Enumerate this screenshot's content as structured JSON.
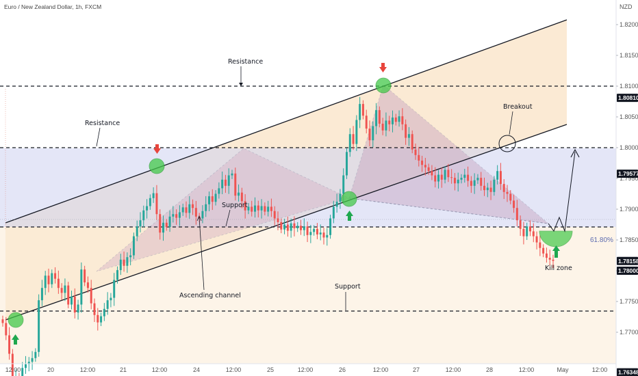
{
  "header": {
    "title": "Euro / New Zealand Dollar, 1h, FXCM",
    "currency": "NZD"
  },
  "colors": {
    "up": "#26a69a",
    "down": "#ef5350",
    "upGreen": "#1fa84f",
    "channelFill": "#f8e2c4",
    "zoneFill": "#c9cdf0",
    "marker": "#3ec44a",
    "dashed": "#131722",
    "priceTag": "#131722"
  },
  "chart_data": {
    "type": "candlestick",
    "title": "Euro / New Zealand Dollar, 1h, FXCM",
    "ylabel": "NZD",
    "ylim": [
      1.7515,
      1.8255
    ],
    "grid": false,
    "x_ticks": [
      "12:00",
      "20",
      "12:00",
      "21",
      "12:00",
      "24",
      "12:00",
      "25",
      "12:00",
      "26",
      "12:00",
      "27",
      "12:00",
      "28",
      "12:00",
      "May",
      "12:00"
    ],
    "y_ticks": [
      "1.82000",
      "1.81500",
      "1.81000",
      "1.80500",
      "1.80000",
      "1.79500",
      "1.79000",
      "1.78500",
      "1.78000",
      "1.77500",
      "1.77000",
      "1.76500",
      "1.76000",
      "1.75500"
    ],
    "price_tags": [
      {
        "label": "1.80810",
        "value": 1.8081
      },
      {
        "label": "1.79577",
        "value": 1.79577
      },
      {
        "label": "1.78158",
        "value": 1.78158
      },
      {
        "label": "1.78000",
        "value": 1.78
      },
      {
        "label": "1.76348",
        "value": 1.76348
      }
    ],
    "horizontal_levels": [
      1.8081,
      1.79577,
      1.78,
      1.76348
    ],
    "candles_close": [
      1.7715,
      1.7695,
      1.7665,
      1.7612,
      1.7628,
      1.7618,
      1.7642,
      1.7648,
      1.7652,
      1.7658,
      1.7668,
      1.7752,
      1.7772,
      1.7792,
      1.7778,
      1.7796,
      1.7787,
      1.7772,
      1.7764,
      1.7776,
      1.7745,
      1.7758,
      1.7732,
      1.7745,
      1.7802,
      1.7781,
      1.7772,
      1.7747,
      1.7728,
      1.7716,
      1.7726,
      1.7738,
      1.7752,
      1.7756,
      1.7785,
      1.7801,
      1.7818,
      1.7808,
      1.7822,
      1.7825,
      1.7856,
      1.7872,
      1.7882,
      1.7898,
      1.7905,
      1.7918,
      1.7926,
      1.7892,
      1.7862,
      1.7878,
      1.7871,
      1.7888,
      1.7892,
      1.7886,
      1.7895,
      1.7903,
      1.7894,
      1.7908,
      1.7902,
      1.7888,
      1.7885,
      1.7897,
      1.7908,
      1.7921,
      1.7912,
      1.7925,
      1.7934,
      1.7948,
      1.7938,
      1.7955,
      1.7958,
      1.7922,
      1.7927,
      1.7913,
      1.7898,
      1.7904,
      1.7896,
      1.7906,
      1.7898,
      1.7905,
      1.7896,
      1.7904,
      1.7897,
      1.7885,
      1.7879,
      1.7867,
      1.7875,
      1.7865,
      1.7877,
      1.7869,
      1.7873,
      1.7866,
      1.7872,
      1.7858,
      1.7863,
      1.7868,
      1.7859,
      1.7862,
      1.7854,
      1.7858,
      1.7885,
      1.7904,
      1.7912,
      1.7925,
      1.7955,
      1.7993,
      1.8022,
      1.8006,
      1.8045,
      1.8071,
      1.8052,
      1.8031,
      1.8012,
      1.8035,
      1.8061,
      1.8039,
      1.8028,
      1.8044,
      1.8038,
      1.8049,
      1.8042,
      1.8051,
      1.8038,
      1.8016,
      1.8022,
      1.7997,
      1.7988,
      1.7979,
      1.7972,
      1.7968,
      1.7962,
      1.7955,
      1.7945,
      1.7956,
      1.7948,
      1.7964,
      1.7952,
      1.7951,
      1.7942,
      1.7948,
      1.7951,
      1.7956,
      1.7946,
      1.7938,
      1.7947,
      1.7951,
      1.7938,
      1.7931,
      1.7935,
      1.7928,
      1.7948,
      1.7962,
      1.7941,
      1.7928,
      1.7925,
      1.7914,
      1.7902,
      1.7882,
      1.7868,
      1.7856,
      1.7872,
      1.7864,
      1.7856,
      1.7846,
      1.7837,
      1.7828,
      1.7821,
      1.7818,
      1.7816
    ]
  },
  "annotations": {
    "resistance_top": "Resistance",
    "resistance_left": "Resistance",
    "support_middle": "Support",
    "ascending_channel": "Ascending channel",
    "support_bottom": "Support",
    "breakout": "Breakout",
    "fib_label": "61.80%",
    "kill_zone": "Kill zone"
  }
}
